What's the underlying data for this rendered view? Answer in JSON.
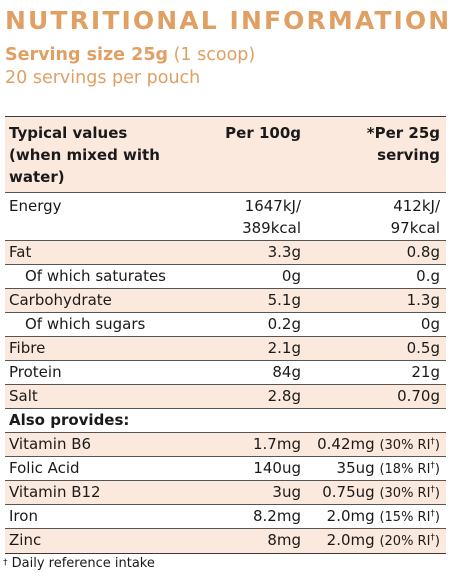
{
  "title": "NUTRITIONAL INFORMATION",
  "serving": {
    "bold": "Serving size 25g",
    "rest": " (1 scoop)"
  },
  "servings_per": "20 servings per pouch",
  "header": {
    "col1_line1": "Typical values",
    "col1_line2": "(when mixed with",
    "col1_line3": "water)",
    "col2": "Per 100g",
    "col3_line1": "*Per 25g",
    "col3_line2": "serving"
  },
  "energy": {
    "label": "Energy",
    "per100_line1": "1647kJ/",
    "per100_line2": "389kcal",
    "per25_line1": "412kJ/",
    "per25_line2": "97kcal"
  },
  "rows": [
    {
      "label": "Fat",
      "per100": "3.3g",
      "per25": "0.8g"
    },
    {
      "label": "Of which saturates",
      "per100": "0g",
      "per25": "0.g"
    },
    {
      "label": "Carbohydrate",
      "per100": "5.1g",
      "per25": "1.3g"
    },
    {
      "label": "Of which sugars",
      "per100": "0.2g",
      "per25": "0g"
    },
    {
      "label": "Fibre",
      "per100": "2.1g",
      "per25": "0.5g"
    },
    {
      "label": "Protein",
      "per100": "84g",
      "per25": "21g"
    },
    {
      "label": "Salt",
      "per100": "2.8g",
      "per25": "0.70g"
    }
  ],
  "also_provides": "Also provides:",
  "vitamins": [
    {
      "label": "Vitamin B6",
      "per100": "1.7mg",
      "per25": "0.42mg",
      "ri": "(30% RI",
      "mark": "†",
      "close": ")"
    },
    {
      "label": "Folic Acid",
      "per100": "140ug",
      "per25": "35ug",
      "ri": "(18% RI",
      "mark": "†",
      "close": ")"
    },
    {
      "label": "Vitamin B12",
      "per100": "3ug",
      "per25": "0.75ug",
      "ri": "(30% RI",
      "mark": "†",
      "close": ")"
    },
    {
      "label": "Iron",
      "per100": "8.2mg",
      "per25": "2.0mg",
      "ri": "(15% RI",
      "mark": "†",
      "close": ")"
    },
    {
      "label": "Zinc",
      "per100": "8mg",
      "per25": "2.0mg",
      "ri": "(20% RI",
      "mark": "†",
      "close": ")"
    }
  ],
  "footnote": {
    "mark": "†",
    "text": " Daily reference intake"
  },
  "colors": {
    "accent": "#e0a064",
    "shade": "#fce9dd",
    "text": "#1a1a1a"
  }
}
